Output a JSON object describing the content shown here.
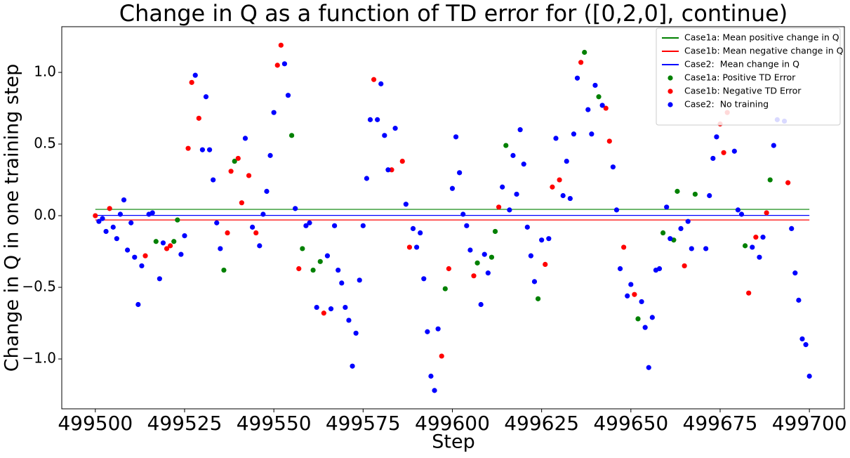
{
  "chart_data": {
    "type": "scatter",
    "title": "Change in Q as a function of TD error for ([0,2,0], continue)",
    "x_label": "Step",
    "y_label": "Change in Q in one training step",
    "xlim": [
      499490.6,
      499709.8
    ],
    "ylim": [
      -1.348,
      1.319
    ],
    "xticks": [
      499500,
      499525,
      499550,
      499575,
      499600,
      499625,
      499650,
      499675,
      499700
    ],
    "yticks": [
      {
        "value": -1.0,
        "label": "−1.0"
      },
      {
        "value": -0.5,
        "label": "−0.5"
      },
      {
        "value": 0,
        "label": "0.0"
      },
      {
        "value": 0.5,
        "label": "0.5"
      },
      {
        "value": 1.0,
        "label": "1.0"
      }
    ],
    "grid": false,
    "legend": "upper right",
    "series": [
      {
        "name": "Case1a: Mean positive change in Q",
        "type": "line",
        "color": "#008000",
        "x": [
          499500,
          499700
        ],
        "values": [
          0.044,
          0.044
        ]
      },
      {
        "name": "Case1b: Mean negative change in Q",
        "type": "line",
        "color": "#ff0000",
        "x": [
          499500,
          499700
        ],
        "values": [
          -0.03,
          -0.03
        ]
      },
      {
        "name": "Case2:  Mean change in Q",
        "type": "line",
        "color": "#0000ff",
        "x": [
          499500,
          499700
        ],
        "values": [
          0.002,
          0.002
        ]
      },
      {
        "name": "Case1a: Positive TD Error",
        "type": "scatter",
        "color": "#008000",
        "x": [
          499517,
          499522,
          499523,
          499536,
          499539,
          499555,
          499558,
          499561,
          499563,
          499598,
          499607,
          499611,
          499612,
          499615,
          499624,
          499637,
          499641,
          499652,
          499659,
          499662,
          499663,
          499668,
          499682,
          499689
        ],
        "values": [
          -0.18,
          -0.18,
          -0.03,
          -0.38,
          0.38,
          0.56,
          -0.23,
          -0.38,
          -0.32,
          -0.51,
          -0.33,
          -0.29,
          -0.11,
          0.49,
          -0.58,
          1.14,
          0.83,
          -0.72,
          -0.12,
          -0.17,
          0.17,
          0.15,
          -0.21,
          0.25
        ]
      },
      {
        "name": "Case1b: Negative TD Error",
        "type": "scatter",
        "color": "#ff0000",
        "x": [
          499500,
          499504,
          499514,
          499520,
          499521,
          499526,
          499527,
          499529,
          499537,
          499538,
          499540,
          499541,
          499543,
          499545,
          499551,
          499552,
          499557,
          499564,
          499578,
          499583,
          499586,
          499588,
          499597,
          499599,
          499606,
          499613,
          499626,
          499628,
          499630,
          499636,
          499643,
          499644,
          499648,
          499651,
          499665,
          499675,
          499676,
          499677,
          499683,
          499685,
          499688,
          499694
        ],
        "values": [
          0.0,
          0.05,
          -0.28,
          -0.23,
          -0.21,
          0.47,
          0.93,
          0.68,
          -0.12,
          0.31,
          0.4,
          0.09,
          0.28,
          -0.12,
          1.05,
          1.19,
          -0.37,
          -0.68,
          0.95,
          0.32,
          0.38,
          -0.22,
          -0.98,
          -0.37,
          -0.42,
          0.06,
          -0.34,
          0.2,
          0.25,
          1.07,
          0.75,
          0.52,
          -0.22,
          -0.55,
          -0.35,
          0.64,
          0.44,
          0.72,
          -0.54,
          -0.15,
          0.02,
          0.23
        ]
      },
      {
        "name": "Case2:  No training",
        "type": "scatter",
        "color": "#0000ff",
        "x": [
          499501,
          499502,
          499503,
          499505,
          499506,
          499507,
          499508,
          499509,
          499510,
          499511,
          499512,
          499513,
          499515,
          499516,
          499518,
          499519,
          499524,
          499525,
          499528,
          499530,
          499531,
          499532,
          499533,
          499534,
          499535,
          499542,
          499544,
          499546,
          499547,
          499548,
          499549,
          499550,
          499553,
          499554,
          499556,
          499559,
          499560,
          499562,
          499565,
          499566,
          499567,
          499568,
          499569,
          499570,
          499571,
          499572,
          499573,
          499574,
          499575,
          499576,
          499577,
          499579,
          499580,
          499581,
          499582,
          499584,
          499587,
          499589,
          499590,
          499591,
          499592,
          499593,
          499594,
          499595,
          499596,
          499600,
          499601,
          499602,
          499603,
          499604,
          499605,
          499608,
          499609,
          499610,
          499614,
          499616,
          499617,
          499618,
          499619,
          499620,
          499621,
          499622,
          499623,
          499625,
          499627,
          499629,
          499631,
          499632,
          499633,
          499634,
          499635,
          499638,
          499639,
          499640,
          499642,
          499645,
          499646,
          499647,
          499649,
          499650,
          499653,
          499654,
          499655,
          499656,
          499657,
          499658,
          499660,
          499661,
          499664,
          499666,
          499667,
          499671,
          499672,
          499673,
          499674,
          499679,
          499680,
          499681,
          499684,
          499686,
          499687,
          499690,
          499691,
          499693,
          499695,
          499696,
          499697,
          499698,
          499699,
          499700
        ],
        "values": [
          -0.04,
          -0.02,
          -0.11,
          -0.08,
          -0.16,
          0.01,
          0.11,
          -0.24,
          -0.05,
          -0.29,
          -0.62,
          -0.35,
          0.01,
          0.02,
          -0.44,
          -0.19,
          -0.27,
          -0.14,
          0.98,
          0.46,
          0.83,
          0.46,
          0.25,
          -0.05,
          -0.23,
          0.54,
          -0.08,
          -0.21,
          0.01,
          0.17,
          0.42,
          0.72,
          1.06,
          0.84,
          0.05,
          -0.07,
          -0.05,
          -0.64,
          -0.28,
          -0.65,
          -0.07,
          -0.38,
          -0.47,
          -0.64,
          -0.73,
          -1.05,
          -0.82,
          -0.45,
          -0.07,
          0.26,
          0.67,
          0.67,
          0.92,
          0.56,
          0.32,
          0.61,
          0.08,
          -0.09,
          -0.22,
          -0.12,
          -0.44,
          -0.81,
          -1.12,
          -1.22,
          -0.79,
          0.19,
          0.55,
          0.3,
          0.01,
          -0.07,
          -0.24,
          -0.62,
          -0.27,
          -0.4,
          0.2,
          0.04,
          0.42,
          0.15,
          0.6,
          0.36,
          -0.08,
          -0.28,
          -0.46,
          -0.17,
          -0.16,
          0.54,
          0.14,
          0.38,
          0.12,
          0.57,
          0.96,
          0.74,
          0.57,
          0.91,
          0.77,
          0.34,
          0.04,
          -0.37,
          -0.56,
          -0.48,
          -0.6,
          -0.78,
          -1.06,
          -0.71,
          -0.38,
          -0.37,
          0.06,
          -0.16,
          -0.09,
          -0.04,
          -0.23,
          -0.23,
          0.14,
          0.4,
          0.55,
          0.45,
          0.04,
          0.01,
          -0.22,
          -0.29,
          -0.15,
          0.49,
          0.67,
          0.66,
          -0.09,
          -0.4,
          -0.59,
          -0.86,
          -0.9,
          -1.12
        ]
      }
    ]
  }
}
